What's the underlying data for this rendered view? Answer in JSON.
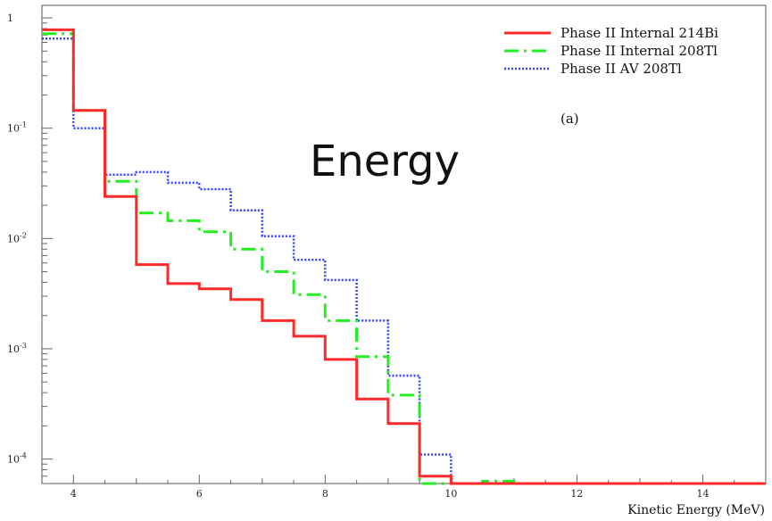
{
  "overlay_text": "Energy",
  "chart_data": {
    "type": "line",
    "title": "",
    "xlabel": "Kinetic Energy (MeV)",
    "ylabel": "",
    "panel_label": "(a)",
    "xlim": [
      3.5,
      15
    ],
    "ylim": [
      6e-05,
      1.3
    ],
    "y_scale": "log",
    "grid": false,
    "legend_position": "top-right",
    "x_ticks": [
      4,
      6,
      8,
      10,
      12,
      14
    ],
    "y_ticks": [
      {
        "value": 1,
        "label": "1"
      },
      {
        "value": 0.1,
        "label": "10-1",
        "base": "10",
        "exp": "-1"
      },
      {
        "value": 0.01,
        "label": "10-2",
        "base": "10",
        "exp": "-2"
      },
      {
        "value": 0.001,
        "label": "10-3",
        "base": "10",
        "exp": "-3"
      },
      {
        "value": 0.0001,
        "label": "10-4",
        "base": "10",
        "exp": "-4"
      }
    ],
    "bin_edges": [
      3.5,
      4,
      4.5,
      5,
      5.5,
      6,
      6.5,
      7,
      7.5,
      8,
      8.5,
      9,
      9.5,
      10,
      10.5,
      11,
      11.5,
      12,
      12.5,
      13,
      13.5,
      14,
      14.5,
      15
    ],
    "series": [
      {
        "name": "Phase II Internal 214Bi",
        "color": "#ff2a2a",
        "style": "solid",
        "values": [
          0.78,
          0.145,
          0.024,
          0.0058,
          0.0039,
          0.0035,
          0.0028,
          0.0018,
          0.0013,
          0.0008,
          0.00035,
          0.00021,
          7e-05,
          6e-05,
          6e-05,
          6e-05,
          6e-05,
          6e-05,
          6e-05,
          6e-05,
          6e-05,
          6e-05,
          6e-05
        ]
      },
      {
        "name": "Phase II Internal 208Tl",
        "color": "#22ee22",
        "style": "dashdot",
        "values": [
          0.72,
          0.145,
          0.033,
          0.017,
          0.0145,
          0.0115,
          0.008,
          0.005,
          0.0031,
          0.0018,
          0.00085,
          0.00038,
          6e-05,
          6e-05,
          6.3e-05,
          6e-05,
          6e-05,
          6e-05,
          6e-05,
          6e-05,
          6e-05,
          6e-05,
          6e-05
        ]
      },
      {
        "name": "Phase II AV 208Tl",
        "color": "#3344ff",
        "style": "dotted",
        "values": [
          0.65,
          0.1,
          0.038,
          0.04,
          0.032,
          0.028,
          0.018,
          0.0105,
          0.0064,
          0.0042,
          0.0018,
          0.00057,
          0.00011,
          6e-05,
          6e-05,
          6e-05,
          6e-05,
          6e-05,
          6e-05,
          6e-05,
          6e-05,
          6e-05,
          6e-05
        ]
      }
    ]
  }
}
